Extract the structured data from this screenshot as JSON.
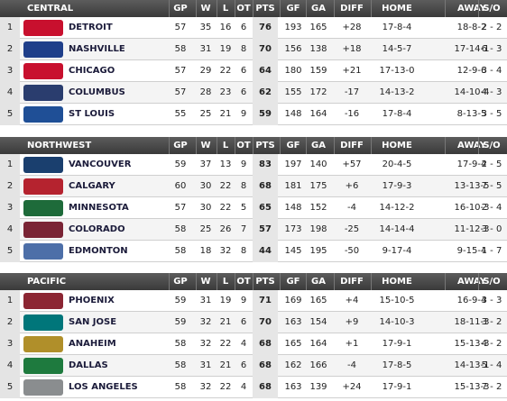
{
  "divisions": [
    {
      "name": "CENTRAL",
      "columns": [
        "GP",
        "W",
        "L",
        "OT",
        "PTS",
        "GF",
        "GA",
        "DIFF",
        "HOME",
        "AWAY",
        "S/O"
      ],
      "rows": [
        {
          "rank": "1",
          "team": "DETROIT",
          "cells": [
            "57",
            "35",
            "16",
            "6",
            "76",
            "193",
            "165",
            "+28",
            "17-8-4",
            "18-8-2",
            "2 - 2"
          ]
        },
        {
          "rank": "2",
          "team": "NASHVILLE",
          "cells": [
            "58",
            "31",
            "19",
            "8",
            "70",
            "156",
            "138",
            "+18",
            "14-5-7",
            "17-14-1",
            "6 - 3"
          ]
        },
        {
          "rank": "3",
          "team": "CHICAGO",
          "cells": [
            "57",
            "29",
            "22",
            "6",
            "64",
            "180",
            "159",
            "+21",
            "17-13-0",
            "12-9-6",
            "3 - 4"
          ]
        },
        {
          "rank": "4",
          "team": "COLUMBUS",
          "cells": [
            "57",
            "28",
            "23",
            "6",
            "62",
            "155",
            "172",
            "-17",
            "14-13-2",
            "14-10-4",
            "4 - 3"
          ]
        },
        {
          "rank": "5",
          "team": "ST LOUIS",
          "cells": [
            "55",
            "25",
            "21",
            "9",
            "59",
            "148",
            "164",
            "-16",
            "17-8-4",
            "8-13-5",
            "3 - 5"
          ]
        }
      ]
    },
    {
      "name": "NORTHWEST",
      "columns": [
        "GP",
        "W",
        "L",
        "OT",
        "PTS",
        "GF",
        "GA",
        "DIFF",
        "HOME",
        "AWAY",
        "S/O"
      ],
      "rows": [
        {
          "rank": "1",
          "team": "VANCOUVER",
          "cells": [
            "59",
            "37",
            "13",
            "9",
            "83",
            "197",
            "140",
            "+57",
            "20-4-5",
            "17-9-4",
            "2 - 5"
          ]
        },
        {
          "rank": "2",
          "team": "CALGARY",
          "cells": [
            "60",
            "30",
            "22",
            "8",
            "68",
            "181",
            "175",
            "+6",
            "17-9-3",
            "13-13-5",
            "7 - 5"
          ]
        },
        {
          "rank": "3",
          "team": "MINNESOTA",
          "cells": [
            "57",
            "30",
            "22",
            "5",
            "65",
            "148",
            "152",
            "-4",
            "14-12-2",
            "16-10-3",
            "2 - 4"
          ]
        },
        {
          "rank": "4",
          "team": "COLORADO",
          "cells": [
            "58",
            "25",
            "26",
            "7",
            "57",
            "173",
            "198",
            "-25",
            "14-14-4",
            "11-12-3",
            "3 - 0"
          ]
        },
        {
          "rank": "5",
          "team": "EDMONTON",
          "cells": [
            "58",
            "18",
            "32",
            "8",
            "44",
            "145",
            "195",
            "-50",
            "9-17-4",
            "9-15-4",
            "1 - 7"
          ]
        }
      ]
    },
    {
      "name": "PACIFIC",
      "columns": [
        "GP",
        "W",
        "L",
        "OT",
        "PTS",
        "GF",
        "GA",
        "DIFF",
        "HOME",
        "AWAY",
        "S/O"
      ],
      "rows": [
        {
          "rank": "1",
          "team": "PHOENIX",
          "cells": [
            "59",
            "31",
            "19",
            "9",
            "71",
            "169",
            "165",
            "+4",
            "15-10-5",
            "16-9-4",
            "3 - 3"
          ]
        },
        {
          "rank": "2",
          "team": "SAN JOSE",
          "cells": [
            "59",
            "32",
            "21",
            "6",
            "70",
            "163",
            "154",
            "+9",
            "14-10-3",
            "18-11-3",
            "3 - 2"
          ]
        },
        {
          "rank": "3",
          "team": "ANAHEIM",
          "cells": [
            "58",
            "32",
            "22",
            "4",
            "68",
            "165",
            "164",
            "+1",
            "17-9-1",
            "15-13-3",
            "4 - 2"
          ]
        },
        {
          "rank": "4",
          "team": "DALLAS",
          "cells": [
            "58",
            "31",
            "21",
            "6",
            "68",
            "162",
            "166",
            "-4",
            "17-8-5",
            "14-13-1",
            "5 - 4"
          ]
        },
        {
          "rank": "5",
          "team": "LOS ANGELES",
          "cells": [
            "58",
            "32",
            "22",
            "4",
            "68",
            "163",
            "139",
            "+24",
            "17-9-1",
            "15-13-3",
            "7 - 2"
          ]
        }
      ]
    }
  ]
}
